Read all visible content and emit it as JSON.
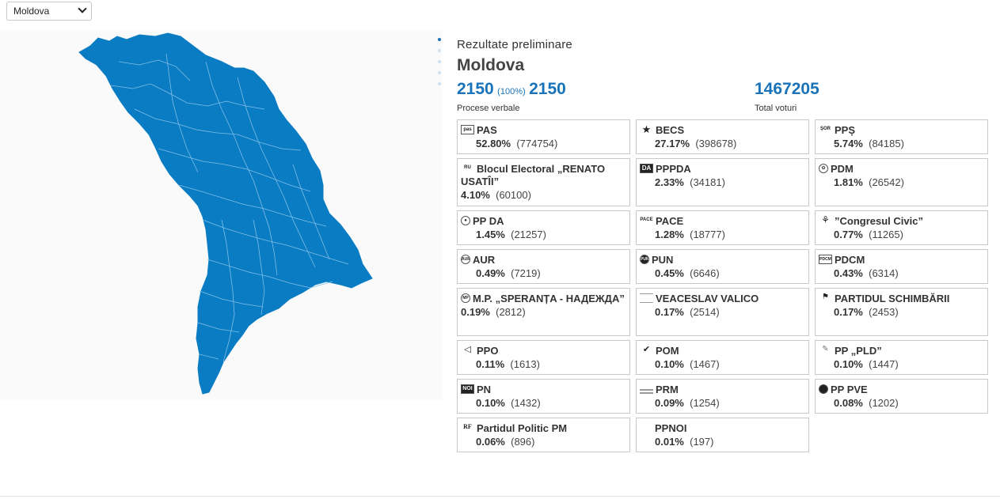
{
  "region_select": {
    "value": "Moldova"
  },
  "header": {
    "subtitle": "Rezultate preliminare",
    "title": "Moldova"
  },
  "stats": {
    "processed": "2150",
    "processed_pct": "(100%)",
    "total_pv": "2150",
    "pv_label": "Procese verbale",
    "total_votes": "1467205",
    "votes_label": "Total voturi"
  },
  "map": {
    "fill_color": "#0a7cc4",
    "border_color": "#7fbfe6"
  },
  "parties": [
    {
      "name": "PAS",
      "pct": "52.80%",
      "votes": "(774754)",
      "logo": "pas-logo"
    },
    {
      "name": "BECS",
      "pct": "27.17%",
      "votes": "(398678)",
      "logo": "star-icon"
    },
    {
      "name": "PPȘ",
      "pct": "5.74%",
      "votes": "(84185)",
      "logo": "pps-logo"
    },
    {
      "name": "Blocul Electoral „RENATO USATÎI”",
      "pct": "4.10%",
      "votes": "(60100)",
      "logo": "renato-usatii-logo"
    },
    {
      "name": "PPPDA",
      "pct": "2.33%",
      "votes": "(34181)",
      "logo": "pppda-logo"
    },
    {
      "name": "PDM",
      "pct": "1.81%",
      "votes": "(26542)",
      "logo": "pdm-logo"
    },
    {
      "name": "PP DA",
      "pct": "1.45%",
      "votes": "(21257)",
      "logo": "ppda-logo"
    },
    {
      "name": "PACE",
      "pct": "1.28%",
      "votes": "(18777)",
      "logo": "pace-logo"
    },
    {
      "name": "”Congresul Civic”",
      "pct": "0.77%",
      "votes": "(11265)",
      "logo": "congresul-civic-logo"
    },
    {
      "name": "AUR",
      "pct": "0.49%",
      "votes": "(7219)",
      "logo": "aur-logo"
    },
    {
      "name": "PUN",
      "pct": "0.45%",
      "votes": "(6646)",
      "logo": "pun-logo"
    },
    {
      "name": "PDCM",
      "pct": "0.43%",
      "votes": "(6314)",
      "logo": "pdcm-logo"
    },
    {
      "name": "M.P. „SPERANȚA - НАДЕЖДА”",
      "pct": "0.19%",
      "votes": "(2812)",
      "logo": "speranta-logo"
    },
    {
      "name": "VEACESLAV VALICO",
      "pct": "0.17%",
      "votes": "(2514)",
      "logo": "valico-logo"
    },
    {
      "name": "PARTIDUL SCHIMBĂRII",
      "pct": "0.17%",
      "votes": "(2453)",
      "logo": "schimbarii-logo"
    },
    {
      "name": "PPO",
      "pct": "0.11%",
      "votes": "(1613)",
      "logo": "ppo-logo"
    },
    {
      "name": "POM",
      "pct": "0.10%",
      "votes": "(1467)",
      "logo": "pom-logo"
    },
    {
      "name": "PP „PLD”",
      "pct": "0.10%",
      "votes": "(1447)",
      "logo": "pld-logo"
    },
    {
      "name": "PN",
      "pct": "0.10%",
      "votes": "(1432)",
      "logo": "pn-logo"
    },
    {
      "name": "PRM",
      "pct": "0.09%",
      "votes": "(1254)",
      "logo": "prm-logo"
    },
    {
      "name": "PP PVE",
      "pct": "0.08%",
      "votes": "(1202)",
      "logo": "pve-logo"
    },
    {
      "name": "Partidul Politic PM",
      "pct": "0.06%",
      "votes": "(896)",
      "logo": "pm-logo"
    },
    {
      "name": "PPNOI",
      "pct": "0.01%",
      "votes": "(197)",
      "logo": "ppnoi-logo"
    }
  ]
}
